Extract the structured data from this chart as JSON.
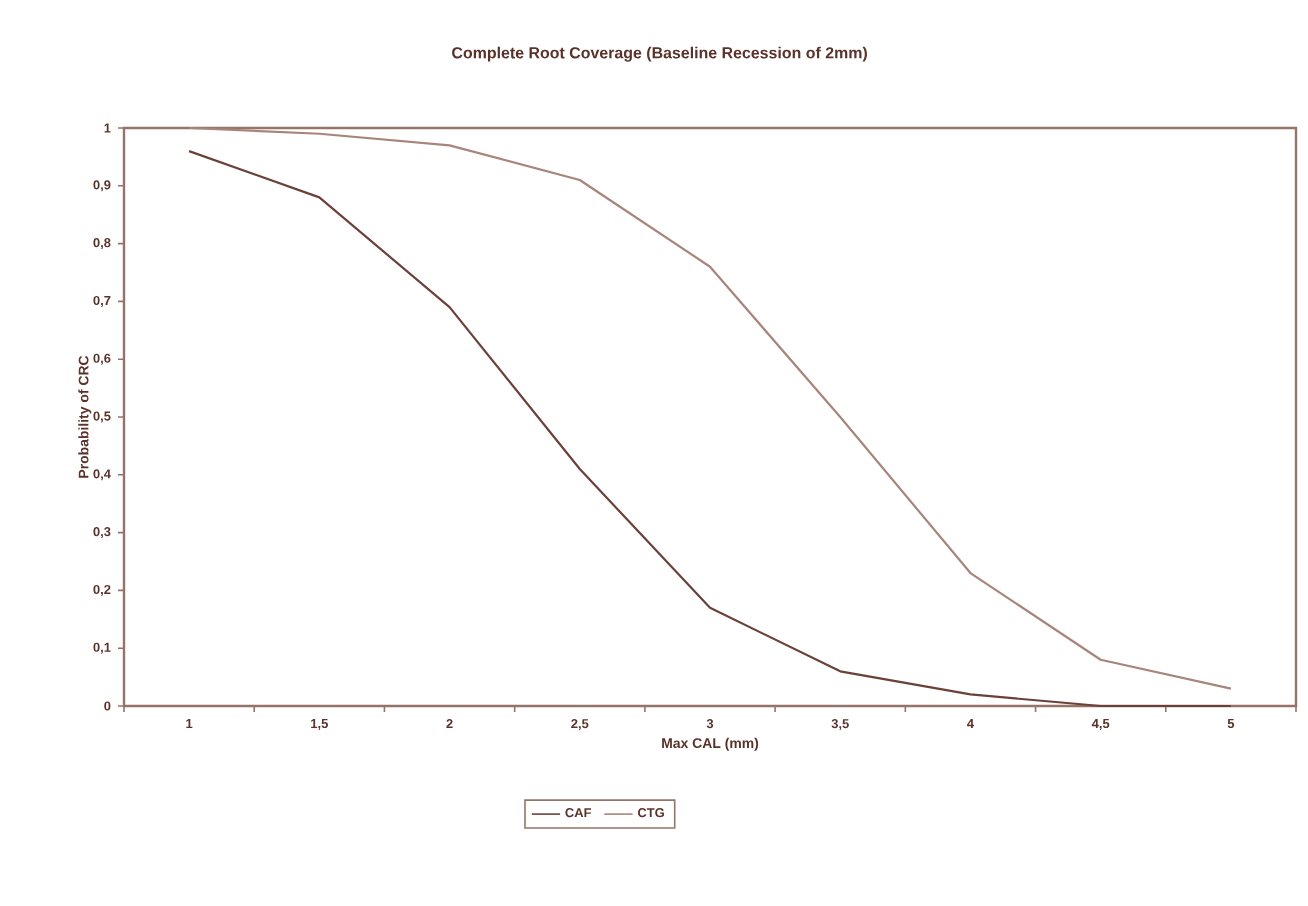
{
  "chart_data": {
    "type": "line",
    "title": "Complete Root Coverage (Baseline Recession of 2mm)",
    "xlabel": "Max CAL (mm)",
    "ylabel": "Probability of CRC",
    "categories": [
      "1",
      "1,5",
      "2",
      "2,5",
      "3",
      "3,5",
      "4",
      "4,5",
      "5"
    ],
    "series": [
      {
        "name": "CAF",
        "color": "#6b4038",
        "values": [
          0.96,
          0.88,
          0.69,
          0.41,
          0.17,
          0.06,
          0.02,
          0.0,
          0.0
        ]
      },
      {
        "name": "CTG",
        "color": "#a8857b",
        "values": [
          1.0,
          0.99,
          0.97,
          0.91,
          0.76,
          0.5,
          0.23,
          0.08,
          0.03
        ]
      }
    ],
    "ylim": [
      0,
      1
    ],
    "yticks": [
      0,
      {
        "value": 0.1,
        "label": "0,1"
      },
      {
        "value": 0.2,
        "label": "0,2"
      },
      {
        "value": 0.3,
        "label": "0,3"
      },
      {
        "value": 0.4,
        "label": "0,4"
      },
      {
        "value": 0.5,
        "label": "0,5"
      },
      {
        "value": 0.6,
        "label": "0,6"
      },
      {
        "value": 0.7,
        "label": "0,7"
      },
      {
        "value": 0.8,
        "label": "0,8"
      },
      {
        "value": 0.9,
        "label": "0,9"
      },
      1
    ],
    "legend": "bottom",
    "marker": "none",
    "line_style": "solid"
  }
}
